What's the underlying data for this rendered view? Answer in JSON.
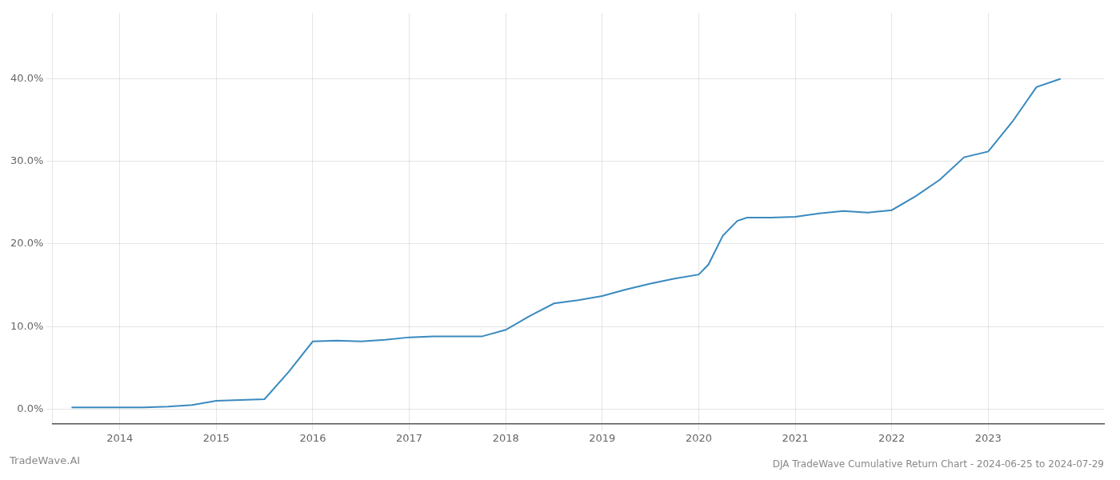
{
  "chart_data": {
    "type": "line",
    "title": "DJA TradeWave Cumulative Return Chart - 2024-06-25 to 2024-07-29",
    "annotations": [
      "TradeWave.AI"
    ],
    "x": [
      2013.5,
      2013.75,
      2014.0,
      2014.25,
      2014.5,
      2014.75,
      2015.0,
      2015.25,
      2015.5,
      2015.75,
      2016.0,
      2016.25,
      2016.5,
      2016.75,
      2017.0,
      2017.25,
      2017.5,
      2017.75,
      2018.0,
      2018.25,
      2018.5,
      2018.75,
      2019.0,
      2019.25,
      2019.5,
      2019.75,
      2020.0,
      2020.1,
      2020.25,
      2020.4,
      2020.5,
      2020.75,
      2021.0,
      2021.25,
      2021.5,
      2021.75,
      2022.0,
      2022.25,
      2022.5,
      2022.75,
      2023.0,
      2023.25,
      2023.5,
      2023.75
    ],
    "values": [
      0.002,
      0.002,
      0.002,
      0.002,
      0.003,
      0.005,
      0.01,
      0.011,
      0.012,
      0.045,
      0.082,
      0.083,
      0.082,
      0.084,
      0.087,
      0.088,
      0.088,
      0.088,
      0.096,
      0.113,
      0.128,
      0.132,
      0.137,
      0.145,
      0.152,
      0.158,
      0.163,
      0.175,
      0.21,
      0.228,
      0.232,
      0.232,
      0.233,
      0.237,
      0.24,
      0.238,
      0.241,
      0.258,
      0.278,
      0.305,
      0.312,
      0.348,
      0.39,
      0.4
    ],
    "color": "#3a8abf",
    "xlim": [
      2013.3,
      2024.2
    ],
    "xticks": [
      2014,
      2015,
      2016,
      2017,
      2018,
      2019,
      2020,
      2021,
      2022,
      2023
    ],
    "ylim": [
      -0.018,
      0.48
    ],
    "yticks": [
      {
        "value": 0.0,
        "label": "0.0%"
      },
      {
        "value": 0.1,
        "label": "10.0%"
      },
      {
        "value": 0.2,
        "label": "20.0%"
      },
      {
        "value": 0.3,
        "label": "30.0%"
      },
      {
        "value": 0.4,
        "label": "40.0%"
      }
    ],
    "grid": true
  }
}
